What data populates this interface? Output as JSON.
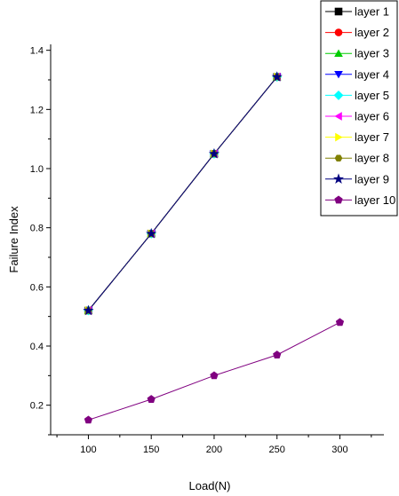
{
  "chart_data": {
    "type": "line",
    "xlabel": "Load(N)",
    "ylabel": "Failure Index",
    "xlim": [
      70,
      335
    ],
    "ylim": [
      0.1,
      1.42
    ],
    "x_ticks": [
      100,
      150,
      200,
      250,
      300
    ],
    "y_ticks": [
      0.2,
      0.4,
      0.6,
      0.8,
      1.0,
      1.2,
      1.4
    ],
    "x_tick_labels": [
      "100",
      "150",
      "200",
      "250",
      "300"
    ],
    "y_tick_labels": [
      "0.2",
      "0.4",
      "0.6",
      "0.8",
      "1.0",
      "1.2",
      "1.4"
    ],
    "grid": false,
    "legend_position": "top-right",
    "series": [
      {
        "name": "layer 1",
        "color": "#000000",
        "marker": "square",
        "x": [
          100,
          150,
          200,
          250
        ],
        "values": [
          0.52,
          0.78,
          1.05,
          1.31
        ]
      },
      {
        "name": "layer 2",
        "color": "#ff0000",
        "marker": "circle",
        "x": [
          100,
          150,
          200,
          250
        ],
        "values": [
          0.52,
          0.78,
          1.05,
          1.31
        ]
      },
      {
        "name": "layer 3",
        "color": "#00cc00",
        "marker": "triangle-up",
        "x": [
          100,
          150,
          200,
          250
        ],
        "values": [
          0.52,
          0.78,
          1.05,
          1.31
        ]
      },
      {
        "name": "layer 4",
        "color": "#0000ff",
        "marker": "triangle-down",
        "x": [
          100,
          150,
          200,
          250
        ],
        "values": [
          0.52,
          0.78,
          1.05,
          1.31
        ]
      },
      {
        "name": "layer 5",
        "color": "#00ffff",
        "marker": "diamond",
        "x": [
          100,
          150,
          200,
          250
        ],
        "values": [
          0.52,
          0.78,
          1.05,
          1.31
        ]
      },
      {
        "name": "layer 6",
        "color": "#ff00ff",
        "marker": "triangle-left",
        "x": [
          100,
          150,
          200,
          250
        ],
        "values": [
          0.52,
          0.78,
          1.05,
          1.31
        ]
      },
      {
        "name": "layer 7",
        "color": "#ffff00",
        "marker": "triangle-right",
        "x": [
          100,
          150,
          200,
          250
        ],
        "values": [
          0.52,
          0.78,
          1.05,
          1.31
        ]
      },
      {
        "name": "layer 8",
        "color": "#808000",
        "marker": "hexagon",
        "x": [
          100,
          150,
          200,
          250
        ],
        "values": [
          0.52,
          0.78,
          1.05,
          1.31
        ]
      },
      {
        "name": "layer 9",
        "color": "#000080",
        "marker": "star",
        "x": [
          100,
          150,
          200,
          250
        ],
        "values": [
          0.52,
          0.78,
          1.05,
          1.31
        ]
      },
      {
        "name": "layer 10",
        "color": "#800080",
        "marker": "pentagon",
        "x": [
          100,
          150,
          200,
          250,
          300
        ],
        "values": [
          0.15,
          0.22,
          0.3,
          0.37,
          0.48
        ]
      }
    ]
  }
}
